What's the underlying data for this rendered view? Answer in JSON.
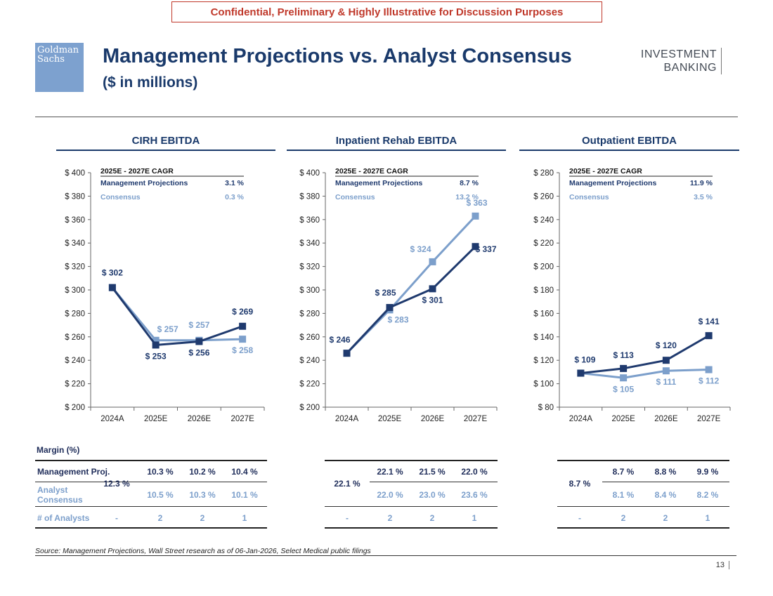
{
  "banner": "Confidential, Preliminary & Highly Illustrative for Discussion Purposes",
  "logo_text": "Goldman\nSachs",
  "title": "Management Projections vs. Analyst Consensus",
  "subtitle": "($ in millions)",
  "ib_line1": "INVESTMENT",
  "ib_line2": "BANKING",
  "colors": {
    "management": "#1f3a6e",
    "consensus": "#7c9fcb",
    "title": "#1a3a6b"
  },
  "chart_data": [
    {
      "type": "line",
      "title": "CIRH EBITDA",
      "categories": [
        "2024A",
        "2025E",
        "2026E",
        "2027E"
      ],
      "ylim": [
        200,
        400
      ],
      "ystep": 20,
      "series": [
        {
          "name": "Management Projections",
          "values": [
            302,
            253,
            256,
            269
          ],
          "labels": [
            "$ 302",
            "$ 253",
            "$ 256",
            "$ 269"
          ]
        },
        {
          "name": "Consensus",
          "values": [
            302,
            257,
            257,
            258
          ],
          "labels": [
            "",
            "$ 257",
            "$ 257",
            "$ 258"
          ]
        }
      ],
      "cagr_header": "2025E - 2027E CAGR",
      "cagr": [
        {
          "name": "Management Projections",
          "value": "3.1 %"
        },
        {
          "name": "Consensus",
          "value": "0.3 %"
        }
      ]
    },
    {
      "type": "line",
      "title": "Inpatient Rehab EBITDA",
      "categories": [
        "2024A",
        "2025E",
        "2026E",
        "2027E"
      ],
      "ylim": [
        200,
        400
      ],
      "ystep": 20,
      "series": [
        {
          "name": "Management Projections",
          "values": [
            246,
            285,
            301,
            337
          ],
          "labels": [
            "$ 246",
            "$ 285",
            "$ 301",
            "$ 337"
          ]
        },
        {
          "name": "Consensus",
          "values": [
            246,
            283,
            324,
            363
          ],
          "labels": [
            "",
            "$ 283",
            "$ 324",
            "$ 363"
          ]
        }
      ],
      "cagr_header": "2025E - 2027E CAGR",
      "cagr": [
        {
          "name": "Management Projections",
          "value": "8.7 %"
        },
        {
          "name": "Consensus",
          "value": "13.2 %"
        }
      ]
    },
    {
      "type": "line",
      "title": "Outpatient EBITDA",
      "categories": [
        "2024A",
        "2025E",
        "2026E",
        "2027E"
      ],
      "ylim": [
        80,
        280
      ],
      "ystep": 20,
      "series": [
        {
          "name": "Management Projections",
          "values": [
            109,
            113,
            120,
            141
          ],
          "labels": [
            "$ 109",
            "$ 113",
            "$ 120",
            "$ 141"
          ]
        },
        {
          "name": "Consensus",
          "values": [
            109,
            105,
            111,
            112
          ],
          "labels": [
            "",
            "$ 105",
            "$ 111",
            "$ 112"
          ]
        }
      ],
      "cagr_header": "2025E - 2027E CAGR",
      "cagr": [
        {
          "name": "Management Projections",
          "value": "11.9 %"
        },
        {
          "name": "Consensus",
          "value": "3.5 %"
        }
      ]
    }
  ],
  "margin_table": {
    "title": "Margin (%)",
    "row_labels": {
      "management": "Management Proj.",
      "consensus_1": "Analyst",
      "consensus_2": "Consensus",
      "analysts": "# of Analysts"
    },
    "panels": [
      {
        "base": "12.3 %",
        "management": [
          "10.3 %",
          "10.2 %",
          "10.4 %"
        ],
        "consensus": [
          "10.5 %",
          "10.3 %",
          "10.1 %"
        ],
        "analysts": [
          "-",
          "2",
          "2",
          "1"
        ]
      },
      {
        "base": "22.1 %",
        "management": [
          "22.1 %",
          "21.5 %",
          "22.0 %"
        ],
        "consensus": [
          "22.0 %",
          "23.0 %",
          "23.6 %"
        ],
        "analysts": [
          "-",
          "2",
          "2",
          "1"
        ]
      },
      {
        "base": "8.7 %",
        "management": [
          "8.7 %",
          "8.8 %",
          "9.9 %"
        ],
        "consensus": [
          "8.1 %",
          "8.4 %",
          "8.2 %"
        ],
        "analysts": [
          "-",
          "2",
          "2",
          "1"
        ]
      }
    ]
  },
  "source": "Source: Management Projections, Wall Street research as of 06-Jan-2026, Select Medical public filings",
  "page_number": "13"
}
